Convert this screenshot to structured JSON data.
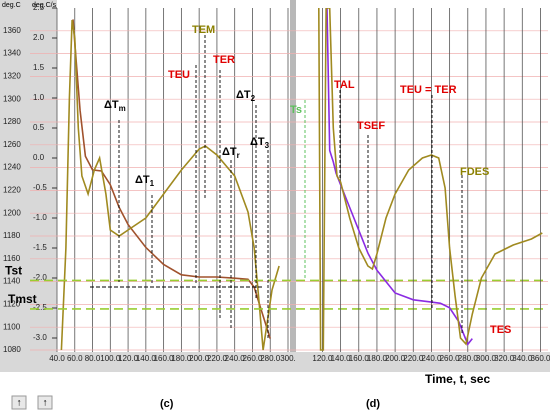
{
  "chart_data": [
    {
      "type": "line",
      "panel_label": "(c)",
      "axis_units": [
        "deg.C",
        "deg.C/s"
      ],
      "xlim": [
        40,
        300
      ],
      "xticks": [
        {
          "value": 40,
          "label": "40.0"
        },
        {
          "value": 60,
          "label": "60.0"
        },
        {
          "value": 80,
          "label": "80.0"
        },
        {
          "value": 100,
          "label": "100.0"
        },
        {
          "value": 120,
          "label": "120.0"
        },
        {
          "value": 140,
          "label": "140.0"
        },
        {
          "value": 160,
          "label": "160.0"
        },
        {
          "value": 180,
          "label": "180.0"
        },
        {
          "value": 200,
          "label": "200.0"
        },
        {
          "value": 220,
          "label": "220.0"
        },
        {
          "value": 240,
          "label": "240.0"
        },
        {
          "value": 260,
          "label": "260.0"
        },
        {
          "value": 280,
          "label": "280.0"
        },
        {
          "value": 300,
          "label": "300."
        }
      ],
      "ylim": [
        1080,
        1380
      ],
      "yticks": [
        1080,
        1100,
        1120,
        1140,
        1160,
        1180,
        1200,
        1220,
        1240,
        1260,
        1280,
        1300,
        1320,
        1340,
        1360
      ],
      "y2lim": [
        -3.2,
        2.5
      ],
      "y2ticks": [
        {
          "value": -3,
          "label": "-3.0"
        },
        {
          "value": -2.5,
          "label": "-2.5"
        },
        {
          "value": -2,
          "label": "-2.0"
        },
        {
          "value": -1.5,
          "label": "-1.5"
        },
        {
          "value": -1,
          "label": "-1.0"
        },
        {
          "value": -0.5,
          "label": "-0.5"
        },
        {
          "value": 0,
          "label": "0.0"
        },
        {
          "value": 0.5,
          "label": "0.5"
        },
        {
          "value": 1,
          "label": "1.0"
        },
        {
          "value": 1.5,
          "label": "1.5"
        },
        {
          "value": 2,
          "label": "2.0"
        },
        {
          "value": 2.5,
          "label": "2.5"
        }
      ],
      "grid": true,
      "reference_lines": [
        {
          "label": "Tst",
          "value": 1141
        },
        {
          "label": "Tmst",
          "value": 1116
        }
      ],
      "series": [
        {
          "color": "#a0522d",
          "axis": "y",
          "x": [
            58,
            62,
            66,
            72,
            80,
            90,
            100,
            110,
            120,
            140,
            160,
            180,
            200,
            220,
            240,
            255,
            262,
            270,
            280
          ],
          "values": [
            1370,
            1330,
            1290,
            1250,
            1238,
            1237,
            1225,
            1205,
            1190,
            1170,
            1155,
            1146,
            1144,
            1144,
            1143,
            1142,
            1135,
            1115,
            1090
          ]
        },
        {
          "color": "#a08a20",
          "axis": "y2",
          "x": [
            45,
            50,
            54,
            57,
            60,
            64,
            68,
            75,
            82,
            88,
            95,
            100,
            110,
            120,
            140,
            160,
            180,
            200,
            207,
            220,
            240,
            255,
            262,
            268,
            272,
            276,
            282,
            290
          ],
          "values": [
            -3.2,
            -1.5,
            1.0,
            2.3,
            2.0,
            0.5,
            -0.3,
            -0.6,
            -0.2,
            0.0,
            -0.6,
            -1.2,
            -1.3,
            -1.2,
            -1.0,
            -0.6,
            -0.2,
            0.15,
            0.2,
            0.05,
            -0.3,
            -0.9,
            -1.5,
            -2.5,
            -3.2,
            -2.8,
            -2.2,
            -1.8
          ]
        }
      ],
      "annotations": [
        {
          "text": "ΔT",
          "sub": "m",
          "color": "#000"
        },
        {
          "text": "ΔT",
          "sub": "1",
          "color": "#000"
        },
        {
          "text": "TEU",
          "color": "#e00000"
        },
        {
          "text": "TEM",
          "color": "#8b8000"
        },
        {
          "text": "TER",
          "color": "#e00000"
        },
        {
          "text": "ΔT",
          "sub": "2",
          "color": "#000"
        },
        {
          "text": "ΔT",
          "sub": "r",
          "color": "#000"
        },
        {
          "text": "ΔT",
          "sub": "3",
          "color": "#000"
        }
      ],
      "footer_icons": [
        "↑",
        "↑"
      ]
    },
    {
      "type": "line",
      "panel_label": "(d)",
      "xlabel": "Time, t, sec",
      "xlim": [
        92,
        365
      ],
      "xticks": [
        {
          "value": 120,
          "label": "120.0"
        },
        {
          "value": 140,
          "label": "140.0"
        },
        {
          "value": 160,
          "label": "160.0"
        },
        {
          "value": 180,
          "label": "180.0"
        },
        {
          "value": 200,
          "label": "200.0"
        },
        {
          "value": 220,
          "label": "220.0"
        },
        {
          "value": 240,
          "label": "240.0"
        },
        {
          "value": 260,
          "label": "260.0"
        },
        {
          "value": 280,
          "label": "280.0"
        },
        {
          "value": 300,
          "label": "300.0"
        },
        {
          "value": 320,
          "label": "320.0"
        },
        {
          "value": 340,
          "label": "340.0"
        },
        {
          "value": 360,
          "label": "360.0"
        }
      ],
      "ylim": [
        1080,
        1380
      ],
      "y2lim": [
        -3.2,
        2.5
      ],
      "series": [
        {
          "color": "#8a2be2",
          "axis": "y",
          "x": [
            125,
            128,
            132,
            135,
            140,
            150,
            160,
            170,
            180,
            190,
            200,
            220,
            240,
            250,
            260,
            270,
            275,
            280,
            285
          ],
          "values": [
            1380,
            1255,
            1245,
            1235,
            1225,
            1205,
            1185,
            1165,
            1150,
            1140,
            1130,
            1124,
            1122,
            1121,
            1117,
            1105,
            1095,
            1085,
            1090
          ]
        },
        {
          "color": "#a08a20",
          "axis": "y2",
          "x": [
            116,
            118,
            121,
            124,
            128,
            132,
            136,
            140,
            150,
            160,
            170,
            175,
            180,
            190,
            200,
            215,
            230,
            240,
            248,
            255,
            260,
            266,
            272,
            278,
            285,
            295,
            310,
            330,
            350,
            362
          ],
          "values": [
            2.5,
            -3.2,
            -3.2,
            2.5,
            2.5,
            0.5,
            -0.3,
            -0.4,
            -1.0,
            -1.5,
            -1.8,
            -1.85,
            -1.6,
            -1.0,
            -0.6,
            -0.2,
            0.0,
            0.05,
            0.0,
            -0.5,
            -1.5,
            -2.3,
            -3.0,
            -3.1,
            -2.6,
            -2.0,
            -1.6,
            -1.45,
            -1.35,
            -1.25
          ]
        }
      ],
      "annotations": [
        {
          "text": "Ts",
          "color": "#5cc05c"
        },
        {
          "text": "TAL",
          "color": "#e00000"
        },
        {
          "text": "TSEF",
          "color": "#e00000"
        },
        {
          "text": "TEU = TER",
          "color": "#e00000"
        },
        {
          "text": "FDES",
          "color": "#8b8000"
        },
        {
          "text": "TES",
          "color": "#e00000"
        }
      ]
    }
  ]
}
